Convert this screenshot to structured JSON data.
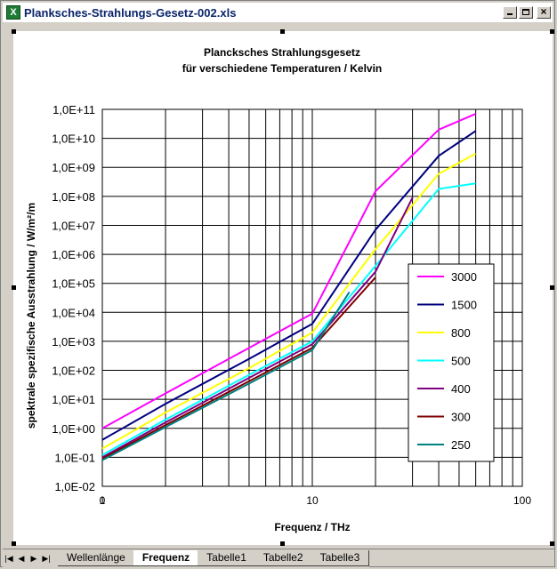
{
  "window": {
    "title": "Planksches-Strahlungs-Gesetz-002.xls",
    "app_icon": "excel-icon",
    "app_icon_letter": "X"
  },
  "sheet_tabs": {
    "nav_glyphs": [
      "|◀",
      "◀",
      "▶",
      "▶|"
    ],
    "tabs": [
      {
        "label": "Wellenlänge",
        "active": false
      },
      {
        "label": "Frequenz",
        "active": true
      },
      {
        "label": "Tabelle1",
        "active": false
      },
      {
        "label": "Tabelle2",
        "active": false
      },
      {
        "label": "Tabelle3",
        "active": false
      }
    ]
  },
  "chart_data": {
    "type": "line",
    "title": "Plancksches Strahlungsgesetz",
    "subtitle": "für verschiedene Temperaturen / Kelvin",
    "xlabel": "Frequenz / THz",
    "ylabel": "spektrale spezifische Ausstrahlung / W/m²/m",
    "x_scale": "log",
    "y_scale": "log",
    "xlim": [
      1,
      100
    ],
    "ylim": [
      0.01,
      100000000000
    ],
    "x_tick_labels": [
      "0",
      "1",
      "10",
      "100"
    ],
    "y_tick_labels": [
      "1,0E+11",
      "1,0E+10",
      "1,0E+09",
      "1,0E+08",
      "1,0E+07",
      "1,0E+06",
      "1,0E+05",
      "1,0E+04",
      "1,0E+03",
      "1,0E+02",
      "1,0E+01",
      "1,0E+00",
      "1,0E-01",
      "1,0E-02"
    ],
    "grid": true,
    "legend_position": "right",
    "series": [
      {
        "name": "3000",
        "color": "#ff00ff",
        "x": [
          1,
          2,
          5,
          10,
          20,
          40,
          60
        ],
        "y": [
          1.0,
          16,
          600,
          9000,
          150000000,
          20000000000,
          70000000000
        ]
      },
      {
        "name": "1500",
        "color": "#000080",
        "x": [
          1,
          2,
          5,
          10,
          20,
          40,
          60
        ],
        "y": [
          0.4,
          7,
          250,
          4000,
          7000000,
          2500000000,
          18000000000
        ]
      },
      {
        "name": "800",
        "color": "#ffff00",
        "x": [
          1,
          2,
          5,
          10,
          20,
          40,
          60
        ],
        "y": [
          0.2,
          3.5,
          120,
          2000,
          1500000,
          600000000,
          3000000000
        ]
      },
      {
        "name": "500",
        "color": "#00ffff",
        "x": [
          1,
          2,
          5,
          10,
          20,
          40,
          60
        ],
        "y": [
          0.12,
          2,
          70,
          1000,
          400000,
          180000000,
          280000000
        ]
      },
      {
        "name": "400",
        "color": "#800080",
        "x": [
          1,
          2,
          5,
          10,
          20,
          30
        ],
        "y": [
          0.1,
          1.6,
          55,
          800,
          250000,
          90000000
        ]
      },
      {
        "name": "300",
        "color": "#800000",
        "x": [
          1,
          2,
          5,
          10,
          20
        ],
        "y": [
          0.09,
          1.3,
          42,
          600,
          160000
        ]
      },
      {
        "name": "250",
        "color": "#008080",
        "x": [
          1,
          2,
          5,
          10,
          15
        ],
        "y": [
          0.08,
          1.1,
          35,
          500,
          50000
        ]
      }
    ]
  }
}
